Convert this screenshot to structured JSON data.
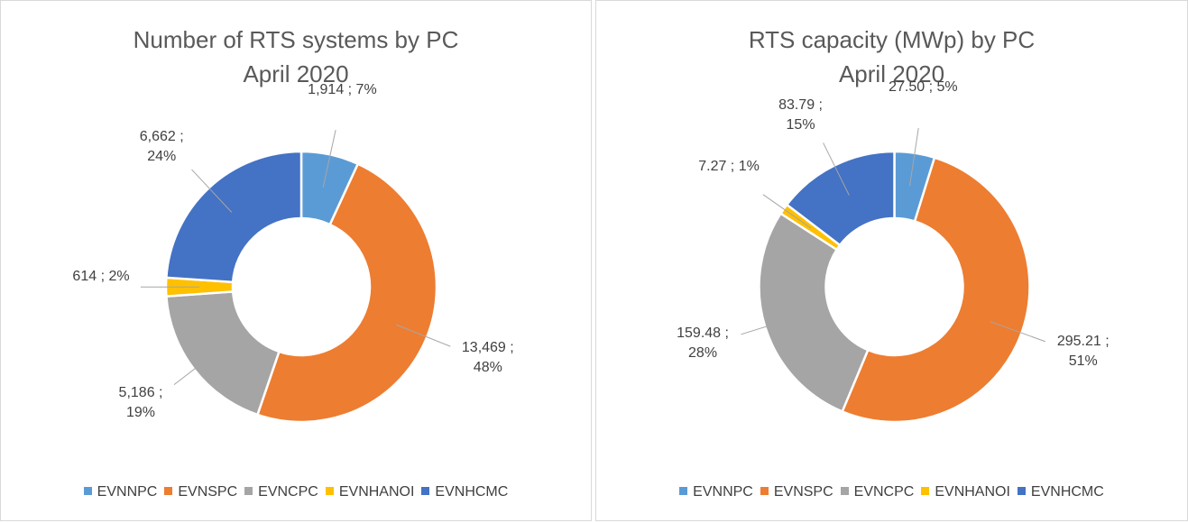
{
  "chart_data": [
    {
      "type": "donut",
      "title": "Number of RTS systems by PC",
      "subtitle": "April 2020",
      "categories": [
        "EVNNPC",
        "EVNSPC",
        "EVNCPC",
        "EVNHANOI",
        "EVNHCMC"
      ],
      "values": [
        1914,
        13469,
        5186,
        614,
        6662
      ],
      "value_labels": [
        "1,914 ; 7%",
        "13,469 ; 48%",
        "5,186 ; 19%",
        "614 ; 2%",
        "6,662 ; 24%"
      ],
      "colors": [
        "#5b9bd5",
        "#ed7d31",
        "#a5a5a5",
        "#ffc000",
        "#4472c4"
      ],
      "legend": "bottom"
    },
    {
      "type": "donut",
      "title": "RTS capacity (MWp) by PC",
      "subtitle": "April 2020",
      "categories": [
        "EVNNPC",
        "EVNSPC",
        "EVNCPC",
        "EVNHANOI",
        "EVNHCMC"
      ],
      "values": [
        27.5,
        295.21,
        159.48,
        7.27,
        83.79
      ],
      "value_labels": [
        "27.50 ; 5%",
        "295.21 ; 51%",
        "159.48 ; 28%",
        "7.27 ; 1%",
        "83.79 ; 15%"
      ],
      "colors": [
        "#5b9bd5",
        "#ed7d31",
        "#a5a5a5",
        "#ffc000",
        "#4472c4"
      ],
      "legend": "bottom"
    }
  ]
}
